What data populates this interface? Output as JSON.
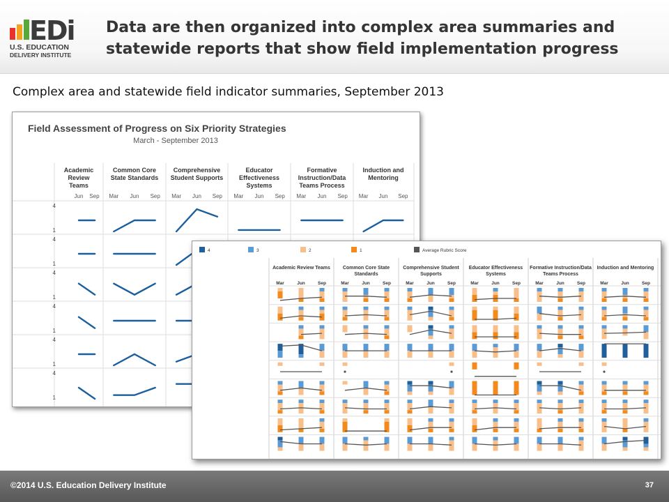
{
  "logo": {
    "letters": "EDi",
    "line1": "U.S. EDUCATION",
    "line2": "DELIVERY INSTITUTE"
  },
  "slide": {
    "title_line1": "Data are then organized into complex area summaries and",
    "title_line2": "statewide reports that show field implementation progress",
    "subtitle": "Complex area and statewide field indicator summaries, September 2013"
  },
  "colors": {
    "line": "#1a5e9e",
    "grey": "#555555",
    "c4": "#1f5f9c",
    "c3": "#5b9bd5",
    "c2": "#f9bf8a",
    "c1": "#f28a1e",
    "footer": "#666666"
  },
  "panel1": {
    "title": "Field Assessment of Progress on Six Priority Strategies",
    "subtitle": "March - September 2013",
    "strategies": [
      "Academic Review Teams",
      "Common Core State Standards",
      "Comprehensive Student Supports",
      "Educator Effectiveness Systems",
      "Formative Instruction/Data Teams Process",
      "Induction and Mentoring"
    ],
    "columns": [
      "Academic\nReview\nTeams",
      "Common Core\nState Standards",
      "Comprehensive\nStudent Supports",
      "Educator\nEffectiveness\nSystems",
      "Formative\nInstruction/Data\nTeams Process",
      "Induction and\nMentoring"
    ],
    "months": [
      "Jun",
      "Sep",
      "Mar",
      "Jun",
      "Sep",
      "Mar",
      "Jun",
      "Sep",
      "Mar",
      "Jun",
      "Sep",
      "Mar",
      "Jun",
      "Sep",
      "Mar",
      "Jun",
      "Sep"
    ],
    "y_top": "4",
    "y_bottom": "1",
    "rows": [
      [
        [
          null,
          2.5,
          2.5
        ],
        [
          1,
          2.5,
          2.5
        ],
        [
          1,
          4,
          3
        ],
        [
          1.2,
          1.2,
          1.2
        ],
        [
          2.5,
          2.5,
          2.5
        ],
        [
          1,
          2.5,
          2.5
        ]
      ],
      [
        [
          null,
          2.5,
          2.5
        ],
        [
          2.5,
          2.5,
          2.5
        ],
        [
          1,
          3,
          null
        ],
        [
          null,
          null,
          null
        ],
        [
          null,
          null,
          null
        ],
        [
          null,
          null,
          null
        ]
      ],
      [
        [
          null,
          3,
          1.5
        ],
        [
          3,
          1.5,
          3
        ],
        [
          1.5,
          3,
          null
        ],
        [
          null,
          null,
          null
        ],
        [
          null,
          null,
          null
        ],
        [
          null,
          null,
          null
        ]
      ],
      [
        [
          null,
          3,
          1.5
        ],
        [
          2.5,
          2.5,
          2.5
        ],
        [
          2.5,
          2.5,
          null
        ],
        [
          null,
          null,
          null
        ],
        [
          null,
          null,
          null
        ],
        [
          null,
          null,
          null
        ]
      ],
      [
        [
          null,
          2.5,
          2.5
        ],
        [
          1,
          2.5,
          1
        ],
        [
          1.5,
          2.5,
          null
        ],
        [
          null,
          null,
          null
        ],
        [
          null,
          null,
          null
        ],
        [
          null,
          null,
          null
        ]
      ],
      [
        [
          null,
          2.5,
          1
        ],
        [
          1.5,
          1.5,
          2.5
        ],
        [
          3,
          3,
          null
        ],
        [
          null,
          null,
          null
        ],
        [
          null,
          null,
          null
        ],
        [
          null,
          null,
          null
        ]
      ]
    ]
  },
  "panel2": {
    "legend": [
      {
        "label": "4",
        "key": "c4"
      },
      {
        "label": "3",
        "key": "c3"
      },
      {
        "label": "2",
        "key": "c2"
      },
      {
        "label": "1",
        "key": "c1"
      },
      {
        "label": "Average Rubric Score",
        "key": "grey"
      }
    ],
    "columns": [
      "Academic Review Teams",
      "Common Core State\nStandards",
      "Comprehensive Student\nSupports",
      "Educator Effectiveness\nSystems",
      "Formative Instruction/Data\nTeams Process",
      "Induction and Mentoring"
    ],
    "months": [
      "Mar",
      "Jun",
      "Sep"
    ],
    "rows": [
      [
        [
          [
            0,
            0,
            1,
            2
          ],
          [
            0,
            0,
            3,
            1
          ],
          [
            0,
            1,
            2,
            1
          ]
        ],
        [
          [
            0,
            1,
            3,
            0
          ],
          [
            0,
            2,
            1,
            1
          ],
          [
            0,
            1,
            2,
            1
          ]
        ],
        [
          [
            0,
            1,
            2,
            1
          ],
          [
            0,
            2,
            2,
            0
          ],
          [
            0,
            2,
            1,
            1
          ]
        ],
        [
          [
            0,
            0,
            2,
            2
          ],
          [
            0,
            1,
            1,
            2
          ],
          [
            0,
            0,
            3,
            1
          ]
        ],
        [
          [
            0,
            1,
            3,
            0
          ],
          [
            0,
            1,
            2,
            1
          ],
          [
            0,
            1,
            3,
            0
          ]
        ],
        [
          [
            0,
            1,
            2,
            1
          ],
          [
            0,
            2,
            1,
            1
          ],
          [
            0,
            1,
            2,
            1
          ]
        ]
      ],
      [
        [
          [
            0,
            0,
            2,
            2
          ],
          [
            0,
            1,
            2,
            1
          ],
          [
            0,
            1,
            1,
            2
          ]
        ],
        [
          [
            0,
            1,
            2,
            1
          ],
          [
            0,
            1,
            3,
            0
          ],
          [
            0,
            1,
            2,
            1
          ]
        ],
        [
          [
            0,
            1,
            3,
            0
          ],
          [
            1,
            2,
            1,
            0
          ],
          [
            0,
            1,
            2,
            1
          ]
        ],
        [
          [
            0,
            0,
            1,
            3
          ],
          [
            0,
            0,
            1,
            3
          ],
          [
            0,
            0,
            2,
            2
          ]
        ],
        [
          [
            0,
            2,
            2,
            0
          ],
          [
            0,
            1,
            2,
            1
          ],
          [
            0,
            1,
            3,
            0
          ]
        ],
        [
          [
            0,
            1,
            2,
            1
          ],
          [
            0,
            2,
            1,
            1
          ],
          [
            0,
            1,
            2,
            1
          ]
        ]
      ],
      [
        [
          [
            0,
            0,
            0,
            0
          ],
          [
            0,
            1,
            2,
            1
          ],
          [
            0,
            1,
            3,
            0
          ]
        ],
        [
          [
            0,
            0,
            2,
            0
          ],
          [
            0,
            1,
            3,
            0
          ],
          [
            0,
            1,
            2,
            1
          ]
        ],
        [
          [
            0,
            0,
            2,
            0
          ],
          [
            1,
            2,
            1,
            0
          ],
          [
            0,
            1,
            3,
            0
          ]
        ],
        [
          [
            0,
            0,
            2,
            2
          ],
          [
            0,
            0,
            2,
            2
          ],
          [
            0,
            0,
            2,
            2
          ]
        ],
        [
          [
            0,
            1,
            3,
            0
          ],
          [
            0,
            1,
            2,
            1
          ],
          [
            0,
            1,
            2,
            1
          ]
        ],
        [
          [
            0,
            1,
            3,
            0
          ],
          [
            0,
            1,
            2,
            0
          ],
          [
            0,
            2,
            2,
            0
          ]
        ]
      ],
      [
        [
          [
            2,
            2,
            0,
            0
          ],
          [
            3,
            1,
            0,
            0
          ],
          [
            0,
            2,
            2,
            0
          ]
        ],
        [
          [
            0,
            2,
            2,
            0
          ],
          [
            0,
            2,
            2,
            0
          ],
          [
            0,
            2,
            2,
            0
          ]
        ],
        [
          [
            0,
            2,
            2,
            0
          ],
          [
            0,
            2,
            2,
            0
          ],
          [
            0,
            2,
            2,
            0
          ]
        ],
        [
          [
            0,
            2,
            2,
            0
          ],
          [
            0,
            1,
            3,
            0
          ],
          [
            0,
            2,
            2,
            0
          ]
        ],
        [
          [
            0,
            2,
            2,
            0
          ],
          [
            1,
            2,
            1,
            0
          ],
          [
            0,
            2,
            2,
            0
          ]
        ],
        [
          [
            4,
            0,
            0,
            0
          ],
          [
            4,
            0,
            0,
            0
          ],
          [
            4,
            0,
            0,
            0
          ]
        ]
      ],
      [
        [
          [
            0,
            0,
            1,
            0
          ],
          [
            0,
            0,
            0,
            0
          ],
          [
            0,
            0,
            1,
            0
          ]
        ],
        [
          [
            0,
            0,
            1,
            0
          ],
          [
            0,
            0,
            0,
            0
          ],
          [
            0,
            0,
            0,
            0
          ]
        ],
        [
          [
            0,
            0,
            0,
            0
          ],
          [
            0,
            0,
            0,
            0
          ],
          [
            0,
            0,
            1,
            0
          ]
        ],
        [
          [
            0,
            0,
            0,
            2
          ],
          [
            0,
            0,
            0,
            0
          ],
          [
            0,
            0,
            0,
            2
          ]
        ],
        [
          [
            0,
            0,
            1,
            0
          ],
          [
            0,
            0,
            0,
            0
          ],
          [
            0,
            0,
            1,
            0
          ]
        ],
        [
          [
            0,
            0,
            1,
            0
          ],
          [
            0,
            0,
            0,
            0
          ],
          [
            0,
            0,
            0,
            0
          ]
        ]
      ],
      [
        [
          [
            0,
            1,
            2,
            1
          ],
          [
            0,
            2,
            2,
            0
          ],
          [
            0,
            1,
            2,
            1
          ]
        ],
        [
          [
            0,
            0,
            1,
            0
          ],
          [
            0,
            2,
            2,
            0
          ],
          [
            0,
            1,
            2,
            1
          ]
        ],
        [
          [
            1,
            2,
            1,
            0
          ],
          [
            1,
            2,
            1,
            0
          ],
          [
            0,
            2,
            2,
            0
          ]
        ],
        [
          [
            0,
            0,
            0,
            4
          ],
          [
            0,
            0,
            0,
            4
          ],
          [
            0,
            0,
            0,
            4
          ]
        ],
        [
          [
            1,
            2,
            1,
            0
          ],
          [
            1,
            2,
            1,
            0
          ],
          [
            0,
            1,
            2,
            1
          ]
        ],
        [
          [
            0,
            1,
            2,
            1
          ],
          [
            0,
            1,
            2,
            1
          ],
          [
            0,
            1,
            2,
            1
          ]
        ]
      ],
      [
        [
          [
            0,
            1,
            2,
            1
          ],
          [
            0,
            1,
            3,
            0
          ],
          [
            0,
            1,
            2,
            1
          ]
        ],
        [
          [
            0,
            1,
            3,
            0
          ],
          [
            0,
            1,
            2,
            1
          ],
          [
            0,
            1,
            2,
            1
          ]
        ],
        [
          [
            0,
            1,
            2,
            1
          ],
          [
            0,
            2,
            2,
            0
          ],
          [
            0,
            1,
            3,
            0
          ]
        ],
        [
          [
            0,
            1,
            2,
            1
          ],
          [
            0,
            1,
            3,
            0
          ],
          [
            0,
            1,
            2,
            1
          ]
        ],
        [
          [
            0,
            1,
            3,
            0
          ],
          [
            0,
            1,
            2,
            1
          ],
          [
            0,
            1,
            3,
            0
          ]
        ],
        [
          [
            0,
            1,
            2,
            1
          ],
          [
            0,
            1,
            2,
            1
          ],
          [
            0,
            1,
            3,
            0
          ]
        ]
      ],
      [
        [
          [
            0,
            0,
            2,
            2
          ],
          [
            0,
            0,
            3,
            1
          ],
          [
            0,
            1,
            2,
            1
          ]
        ],
        [
          [
            0,
            0,
            1,
            3
          ],
          [
            0,
            0,
            0,
            0
          ],
          [
            0,
            0,
            1,
            3
          ]
        ],
        [
          [
            0,
            0,
            2,
            2
          ],
          [
            0,
            1,
            2,
            1
          ],
          [
            0,
            1,
            2,
            1
          ]
        ],
        [
          [
            0,
            0,
            2,
            2
          ],
          [
            0,
            1,
            2,
            1
          ],
          [
            0,
            1,
            2,
            1
          ]
        ],
        [
          [
            0,
            0,
            3,
            1
          ],
          [
            0,
            1,
            2,
            1
          ],
          [
            0,
            1,
            2,
            1
          ]
        ],
        [
          [
            0,
            1,
            3,
            0
          ],
          [
            0,
            0,
            3,
            1
          ],
          [
            0,
            1,
            3,
            0
          ]
        ]
      ],
      [
        [
          [
            1,
            2,
            1,
            0
          ],
          [
            0,
            2,
            2,
            0
          ],
          [
            0,
            2,
            2,
            0
          ]
        ],
        [
          [
            0,
            2,
            2,
            0
          ],
          [
            0,
            1,
            3,
            0
          ],
          [
            0,
            2,
            2,
            0
          ]
        ],
        [
          [
            0,
            2,
            2,
            0
          ],
          [
            0,
            2,
            2,
            0
          ],
          [
            0,
            1,
            3,
            0
          ]
        ],
        [
          [
            0,
            2,
            2,
            0
          ],
          [
            0,
            1,
            3,
            0
          ],
          [
            0,
            2,
            2,
            0
          ]
        ],
        [
          [
            0,
            2,
            2,
            0
          ],
          [
            0,
            2,
            2,
            0
          ],
          [
            0,
            1,
            3,
            0
          ]
        ],
        [
          [
            0,
            2,
            2,
            0
          ],
          [
            1,
            2,
            1,
            0
          ],
          [
            2,
            1,
            1,
            0
          ]
        ]
      ]
    ]
  },
  "footer": {
    "copyright": "©2014 U.S. Education Delivery Institute",
    "page": "37"
  }
}
